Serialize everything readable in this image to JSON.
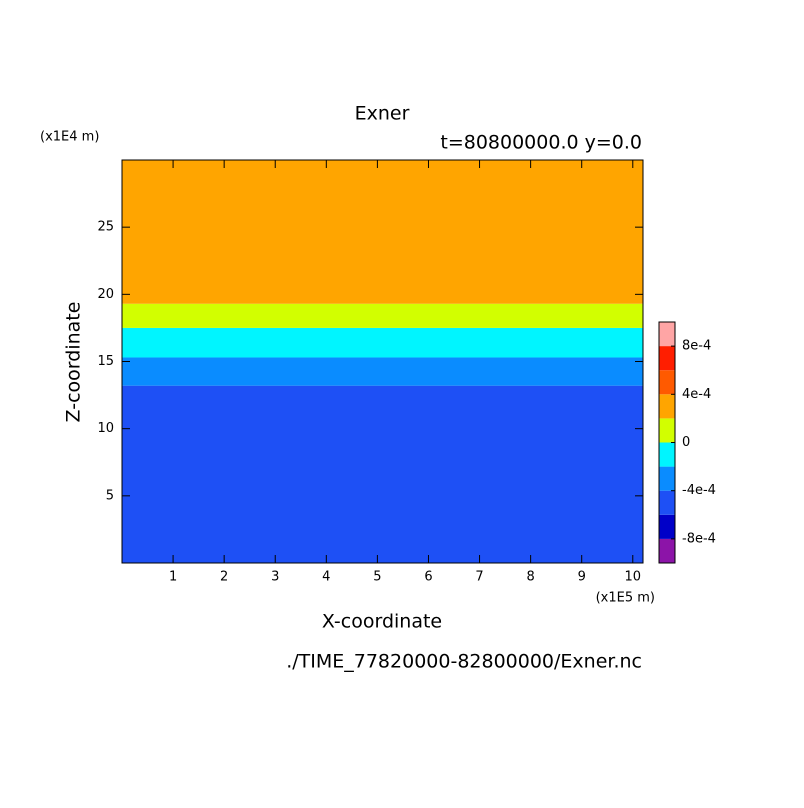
{
  "chart_data": {
    "type": "filled_contour",
    "title": "Exner",
    "subtitle": "t=80800000.0 y=0.0",
    "x_label": "X-coordinate",
    "y_label": "Z-coordinate",
    "x_unit": "(x1E5 m)",
    "y_unit": "(x1E4 m)",
    "footer": "./TIME_77820000-82800000/Exner.nc",
    "xlim": [
      0,
      10.2
    ],
    "ylim": [
      0,
      30
    ],
    "xticks": [
      1,
      2,
      3,
      4,
      5,
      6,
      7,
      8,
      9,
      10
    ],
    "yticks": [
      5,
      10,
      15,
      20,
      25
    ],
    "levels": [
      -0.001,
      -0.0008,
      -0.0006,
      -0.0004,
      -0.0002,
      0,
      0.0002,
      0.0004,
      0.0006,
      0.0008,
      0.001
    ],
    "colors": [
      "#8c14a8",
      "#0000c8",
      "#1e50f5",
      "#0a8cff",
      "#00f5ff",
      "#d2ff00",
      "#ffa500",
      "#ff5a00",
      "#ff1e00",
      "#ffa5a5"
    ],
    "contours": [
      {
        "level": -0.0004,
        "z": 13.2
      },
      {
        "level": -0.0002,
        "z": 15.3
      },
      {
        "level": 0,
        "z": 17.5
      },
      {
        "level": 0.0002,
        "z": 19.3
      }
    ],
    "colorbar_ticks": [
      {
        "value": 0.0008,
        "label": "8e-4"
      },
      {
        "value": 0.0004,
        "label": "4e-4"
      },
      0,
      {
        "value": -0.0004,
        "label": "-4e-4"
      },
      {
        "value": -0.0008,
        "label": "-8e-4"
      }
    ]
  }
}
